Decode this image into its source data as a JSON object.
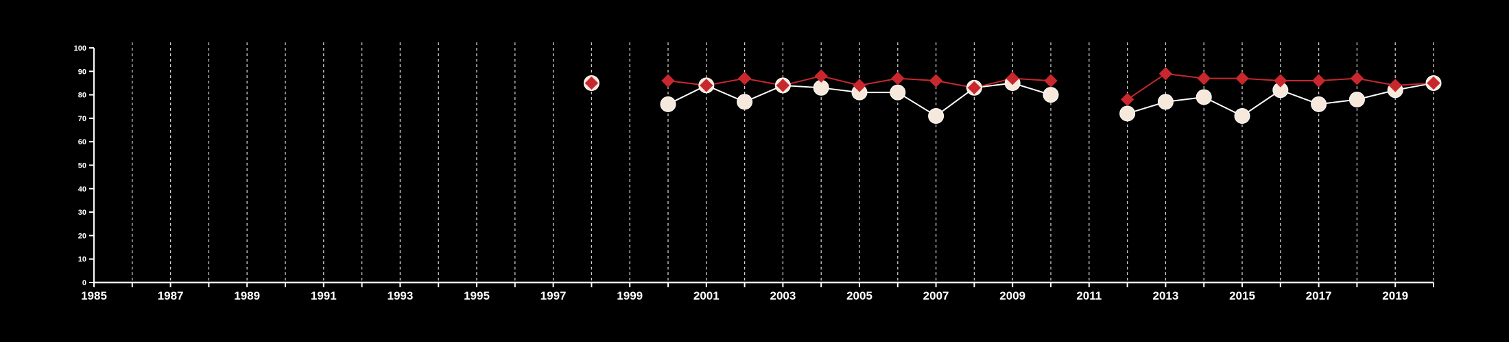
{
  "chart_data": {
    "type": "line",
    "title": "",
    "xlabel": "",
    "ylabel": "",
    "xlim": [
      1985,
      2020
    ],
    "ylim": [
      0,
      100
    ],
    "x_ticks_major": [
      1985,
      1987,
      1989,
      1991,
      1993,
      1995,
      1997,
      1999,
      2001,
      2003,
      2005,
      2007,
      2009,
      2011,
      2013,
      2015,
      2017,
      2019
    ],
    "y_ticks": [
      0,
      10,
      20,
      30,
      40,
      50,
      60,
      70,
      80,
      90,
      100
    ],
    "grid": "vertical dashed lines at every year",
    "legend": "none",
    "background": "#000000",
    "series": [
      {
        "marker": "circle",
        "color": "#ffffff",
        "fill": "#f6e9dc",
        "points": [
          [
            1998,
            85
          ],
          [
            2000,
            76
          ],
          [
            2001,
            84
          ],
          [
            2002,
            77
          ],
          [
            2003,
            84
          ],
          [
            2004,
            83
          ],
          [
            2005,
            81
          ],
          [
            2006,
            81
          ],
          [
            2007,
            71
          ],
          [
            2008,
            83
          ],
          [
            2009,
            85
          ],
          [
            2010,
            80
          ],
          [
            2012,
            72
          ],
          [
            2013,
            77
          ],
          [
            2014,
            79
          ],
          [
            2015,
            71
          ],
          [
            2016,
            82
          ],
          [
            2017,
            76
          ],
          [
            2018,
            78
          ],
          [
            2019,
            82
          ],
          [
            2020,
            85
          ]
        ]
      },
      {
        "marker": "diamond",
        "color": "#c8282d",
        "fill": "#c8282d",
        "points": [
          [
            1998,
            85
          ],
          [
            2000,
            86
          ],
          [
            2001,
            84
          ],
          [
            2002,
            87
          ],
          [
            2003,
            84
          ],
          [
            2004,
            88
          ],
          [
            2005,
            84
          ],
          [
            2006,
            87
          ],
          [
            2007,
            86
          ],
          [
            2008,
            83
          ],
          [
            2009,
            87
          ],
          [
            2010,
            86
          ],
          [
            2012,
            78
          ],
          [
            2013,
            89
          ],
          [
            2014,
            87
          ],
          [
            2015,
            87
          ],
          [
            2016,
            86
          ],
          [
            2017,
            86
          ],
          [
            2018,
            87
          ],
          [
            2019,
            84
          ],
          [
            2020,
            85
          ]
        ]
      }
    ]
  }
}
